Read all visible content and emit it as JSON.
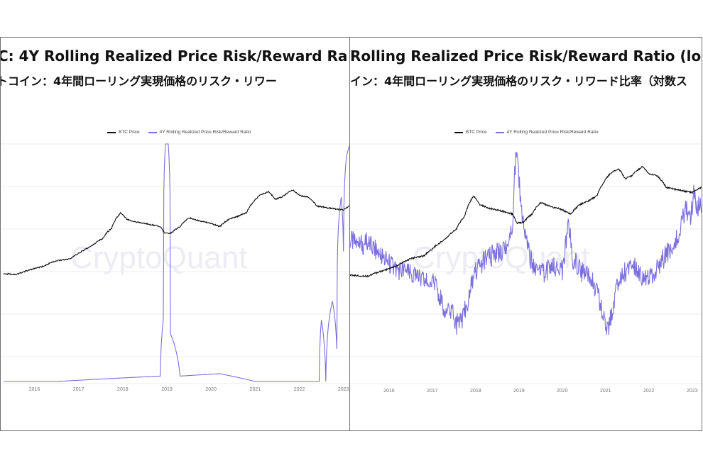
{
  "panels": [
    {
      "title_en": "C: 4Y Rolling Realized Price Risk/Reward Ra",
      "title_jp": "トコイン：4年間ローリング実現価格のリスク・リワー",
      "legend": [
        "BTC Price",
        "4Y Rolling Realized Price Risk/Reward Ratio"
      ],
      "watermark": "CryptoQuant"
    },
    {
      "title_en": "Rolling Realized Price Risk/Reward Ratio (log",
      "title_jp": "イン：4年間ローリング実現価格のリスク・リワード比率（対数ス",
      "legend": [
        "BTC Price",
        "4Y Rolling Realized Price Risk/Reward Ratio"
      ],
      "watermark": "CryptoQuant"
    }
  ],
  "colors": {
    "btc": "#111111",
    "ratio": "#7b6fdc",
    "grid": "#ececec",
    "watermark": "#ececf4"
  },
  "chart_data": [
    {
      "type": "line",
      "x_ticks": [
        "2016",
        "2017",
        "2018",
        "2019",
        "2020",
        "2021",
        "2022",
        "2023"
      ],
      "xlim": [
        2015.3,
        2023.15
      ],
      "y_scale": "log",
      "series": [
        {
          "name": "BTC Price",
          "points": [
            [
              2015.3,
              0.23
            ],
            [
              2015.6,
              0.22
            ],
            [
              2015.9,
              0.3
            ],
            [
              2016.2,
              0.38
            ],
            [
              2016.5,
              0.55
            ],
            [
              2016.8,
              0.62
            ],
            [
              2017.0,
              0.9
            ],
            [
              2017.3,
              1.5
            ],
            [
              2017.55,
              2.5
            ],
            [
              2017.75,
              5
            ],
            [
              2017.95,
              14
            ],
            [
              2018.1,
              9
            ],
            [
              2018.3,
              7.5
            ],
            [
              2018.6,
              6.5
            ],
            [
              2018.85,
              5.5
            ],
            [
              2018.95,
              3.5
            ],
            [
              2019.1,
              3.6
            ],
            [
              2019.3,
              5.5
            ],
            [
              2019.5,
              10
            ],
            [
              2019.75,
              8
            ],
            [
              2019.95,
              7.2
            ],
            [
              2020.2,
              5.5
            ],
            [
              2020.4,
              9
            ],
            [
              2020.6,
              11
            ],
            [
              2020.8,
              14
            ],
            [
              2020.95,
              28
            ],
            [
              2021.1,
              45
            ],
            [
              2021.3,
              58
            ],
            [
              2021.45,
              35
            ],
            [
              2021.6,
              40
            ],
            [
              2021.85,
              65
            ],
            [
              2022.0,
              45
            ],
            [
              2022.2,
              40
            ],
            [
              2022.4,
              22
            ],
            [
              2022.6,
              20
            ],
            [
              2022.85,
              18
            ],
            [
              2023.0,
              17
            ],
            [
              2023.15,
              23
            ]
          ]
        },
        {
          "name": "4Y Rolling Realized Price Risk/Reward Ratio",
          "points": [
            [
              2015.3,
              1
            ],
            [
              2016.5,
              1
            ],
            [
              2018.85,
              1.2
            ],
            [
              2018.92,
              8
            ],
            [
              2018.97,
              3000
            ],
            [
              2019.03,
              3000
            ],
            [
              2019.08,
              5
            ],
            [
              2019.3,
              1.2
            ],
            [
              2020.2,
              1.3
            ],
            [
              2021.0,
              1
            ],
            [
              2022.45,
              1
            ],
            [
              2022.5,
              8
            ],
            [
              2022.6,
              1
            ],
            [
              2022.75,
              15
            ],
            [
              2022.85,
              3
            ],
            [
              2022.95,
              500
            ],
            [
              2023.0,
              80
            ],
            [
              2023.07,
              2000
            ],
            [
              2023.15,
              3000
            ]
          ],
          "spike_labels": [
            "2019",
            "2023"
          ]
        }
      ]
    },
    {
      "type": "line",
      "x_ticks": [
        "2016",
        "2017",
        "2018",
        "2019",
        "2020",
        "2021",
        "2022",
        "2023"
      ],
      "xlim": [
        2015.1,
        2023.25
      ],
      "y_scale": "log",
      "series": [
        {
          "name": "BTC Price",
          "points": [
            [
              2015.1,
              0.23
            ],
            [
              2015.5,
              0.22
            ],
            [
              2015.9,
              0.3
            ],
            [
              2016.2,
              0.38
            ],
            [
              2016.5,
              0.55
            ],
            [
              2016.8,
              0.62
            ],
            [
              2017.0,
              0.9
            ],
            [
              2017.3,
              1.5
            ],
            [
              2017.55,
              2.5
            ],
            [
              2017.75,
              5
            ],
            [
              2017.95,
              14
            ],
            [
              2018.1,
              9
            ],
            [
              2018.3,
              7.5
            ],
            [
              2018.6,
              6.5
            ],
            [
              2018.85,
              5.5
            ],
            [
              2018.95,
              3.5
            ],
            [
              2019.1,
              3.6
            ],
            [
              2019.3,
              5.5
            ],
            [
              2019.5,
              10
            ],
            [
              2019.75,
              8
            ],
            [
              2019.95,
              7.2
            ],
            [
              2020.2,
              5.5
            ],
            [
              2020.4,
              9
            ],
            [
              2020.6,
              11
            ],
            [
              2020.8,
              14
            ],
            [
              2020.95,
              28
            ],
            [
              2021.1,
              45
            ],
            [
              2021.3,
              58
            ],
            [
              2021.45,
              35
            ],
            [
              2021.6,
              40
            ],
            [
              2021.85,
              65
            ],
            [
              2022.0,
              45
            ],
            [
              2022.2,
              40
            ],
            [
              2022.4,
              22
            ],
            [
              2022.6,
              20
            ],
            [
              2022.85,
              18
            ],
            [
              2023.0,
              17
            ],
            [
              2023.25,
              23
            ]
          ]
        },
        {
          "name": "4Y Rolling Realized Price Risk/Reward Ratio (log)",
          "points": [
            [
              2015.1,
              0.2
            ],
            [
              2015.3,
              0.1
            ],
            [
              2015.5,
              0.15
            ],
            [
              2015.8,
              -0.1
            ],
            [
              2016.1,
              -0.35
            ],
            [
              2016.4,
              -0.45
            ],
            [
              2016.7,
              -0.6
            ],
            [
              2016.9,
              -0.65
            ],
            [
              2017.1,
              -0.7
            ],
            [
              2017.25,
              -1.2
            ],
            [
              2017.4,
              -1.1
            ],
            [
              2017.55,
              -1.5
            ],
            [
              2017.7,
              -1.4
            ],
            [
              2017.85,
              -0.9
            ],
            [
              2018.0,
              -0.4
            ],
            [
              2018.2,
              -0.2
            ],
            [
              2018.4,
              -0.1
            ],
            [
              2018.6,
              0.0
            ],
            [
              2018.75,
              0.2
            ],
            [
              2018.85,
              0.5
            ],
            [
              2018.9,
              1.6
            ],
            [
              2018.95,
              2.0
            ],
            [
              2019.0,
              1.4
            ],
            [
              2019.1,
              0.5
            ],
            [
              2019.3,
              -0.3
            ],
            [
              2019.5,
              -0.5
            ],
            [
              2019.7,
              -0.4
            ],
            [
              2019.9,
              -0.3
            ],
            [
              2020.0,
              -0.4
            ],
            [
              2020.15,
              0.5
            ],
            [
              2020.25,
              -0.2
            ],
            [
              2020.5,
              -0.5
            ],
            [
              2020.7,
              -0.6
            ],
            [
              2020.85,
              -1.0
            ],
            [
              2020.95,
              -1.3
            ],
            [
              2021.05,
              -1.6
            ],
            [
              2021.15,
              -1.2
            ],
            [
              2021.3,
              -0.6
            ],
            [
              2021.5,
              -0.4
            ],
            [
              2021.7,
              -0.3
            ],
            [
              2021.85,
              -0.5
            ],
            [
              2022.0,
              -0.6
            ],
            [
              2022.2,
              -0.3
            ],
            [
              2022.4,
              -0.1
            ],
            [
              2022.55,
              0.1
            ],
            [
              2022.65,
              0.3
            ],
            [
              2022.75,
              0.5
            ],
            [
              2022.85,
              0.9
            ],
            [
              2022.95,
              0.6
            ],
            [
              2023.05,
              1.2
            ],
            [
              2023.1,
              0.8
            ],
            [
              2023.2,
              1.0
            ],
            [
              2023.25,
              0.2
            ]
          ]
        }
      ]
    }
  ]
}
